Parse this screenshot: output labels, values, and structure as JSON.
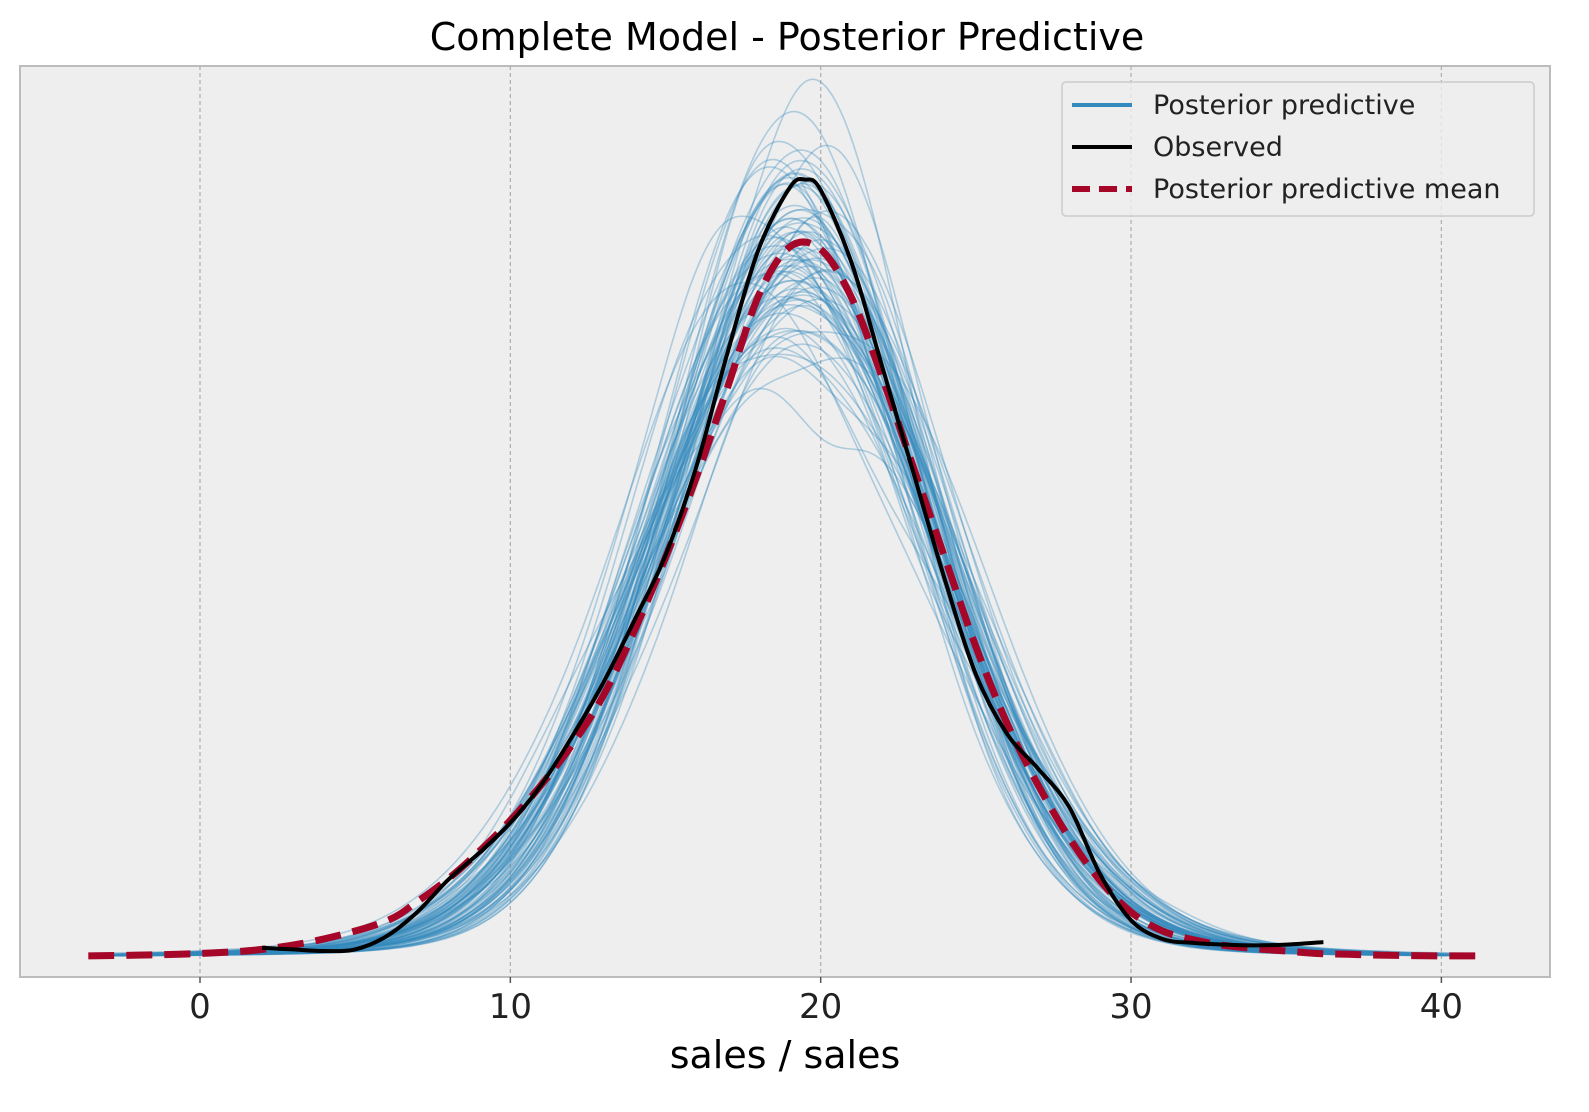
{
  "chart_data": {
    "type": "line",
    "title": "Complete Model - Posterior Predictive",
    "xlabel": "sales / sales",
    "ylabel": "",
    "xlim": [
      -5.8,
      43.5
    ],
    "ylim": [
      -0.0025,
      0.1098
    ],
    "xticks": [
      0,
      10,
      20,
      30,
      40
    ],
    "grid": "vertical",
    "y_ticks_shown": false,
    "legend": {
      "placement": "top-right",
      "entries": [
        {
          "label": "Posterior predictive",
          "color": "#348abd",
          "style": "solid"
        },
        {
          "label": "Observed",
          "color": "#000000",
          "style": "solid"
        },
        {
          "label": "Posterior predictive mean",
          "color": "#a60628",
          "style": "dashed"
        }
      ]
    },
    "series": [
      {
        "name": "Observed",
        "color": "#000000",
        "style": "solid",
        "x": [
          2,
          3,
          4,
          5,
          6,
          7,
          8,
          9,
          10,
          11,
          12,
          13,
          14,
          15,
          16,
          17,
          18,
          19,
          19.5,
          20,
          21,
          22,
          23,
          24,
          25,
          26,
          27,
          28,
          29,
          30,
          31,
          32,
          33,
          34,
          35,
          36.2
        ],
        "y": [
          0.0011,
          0.0009,
          0.0007,
          0.0009,
          0.0025,
          0.0055,
          0.0095,
          0.0128,
          0.0165,
          0.0212,
          0.0272,
          0.0338,
          0.0415,
          0.0495,
          0.0605,
          0.0745,
          0.0872,
          0.0948,
          0.0958,
          0.0945,
          0.0855,
          0.0725,
          0.0595,
          0.0465,
          0.0348,
          0.0275,
          0.0232,
          0.0185,
          0.0102,
          0.0045,
          0.0022,
          0.0017,
          0.0015,
          0.0014,
          0.0015,
          0.0018
        ]
      },
      {
        "name": "Posterior predictive mean",
        "color": "#a60628",
        "style": "dashed",
        "x": [
          -3.6,
          -2,
          0,
          2,
          4,
          6,
          7,
          8,
          9,
          10,
          11,
          12,
          13,
          14,
          15,
          16,
          17,
          18,
          19,
          20,
          21,
          22,
          23,
          24,
          25,
          26,
          27,
          28,
          29,
          30,
          31,
          32,
          33,
          34,
          35,
          36,
          37,
          38,
          40,
          41.2
        ],
        "y": [
          0.0001,
          0.0002,
          0.0004,
          0.0009,
          0.0022,
          0.0044,
          0.0068,
          0.0096,
          0.013,
          0.0168,
          0.0212,
          0.0262,
          0.0322,
          0.0402,
          0.0492,
          0.0592,
          0.0702,
          0.0815,
          0.0875,
          0.0872,
          0.0812,
          0.0712,
          0.0602,
          0.0492,
          0.0382,
          0.0288,
          0.0212,
          0.0147,
          0.0094,
          0.0055,
          0.0032,
          0.0021,
          0.0014,
          0.001,
          0.0007,
          0.0004,
          0.0003,
          0.0002,
          0.0001,
          0.0001
        ]
      }
    ],
    "posterior_predictive": {
      "name": "Posterior predictive",
      "color": "#348abd",
      "description_in_legend_only": true,
      "sample_curves": 80,
      "x_range": [
        -3.6,
        41.2
      ]
    }
  }
}
